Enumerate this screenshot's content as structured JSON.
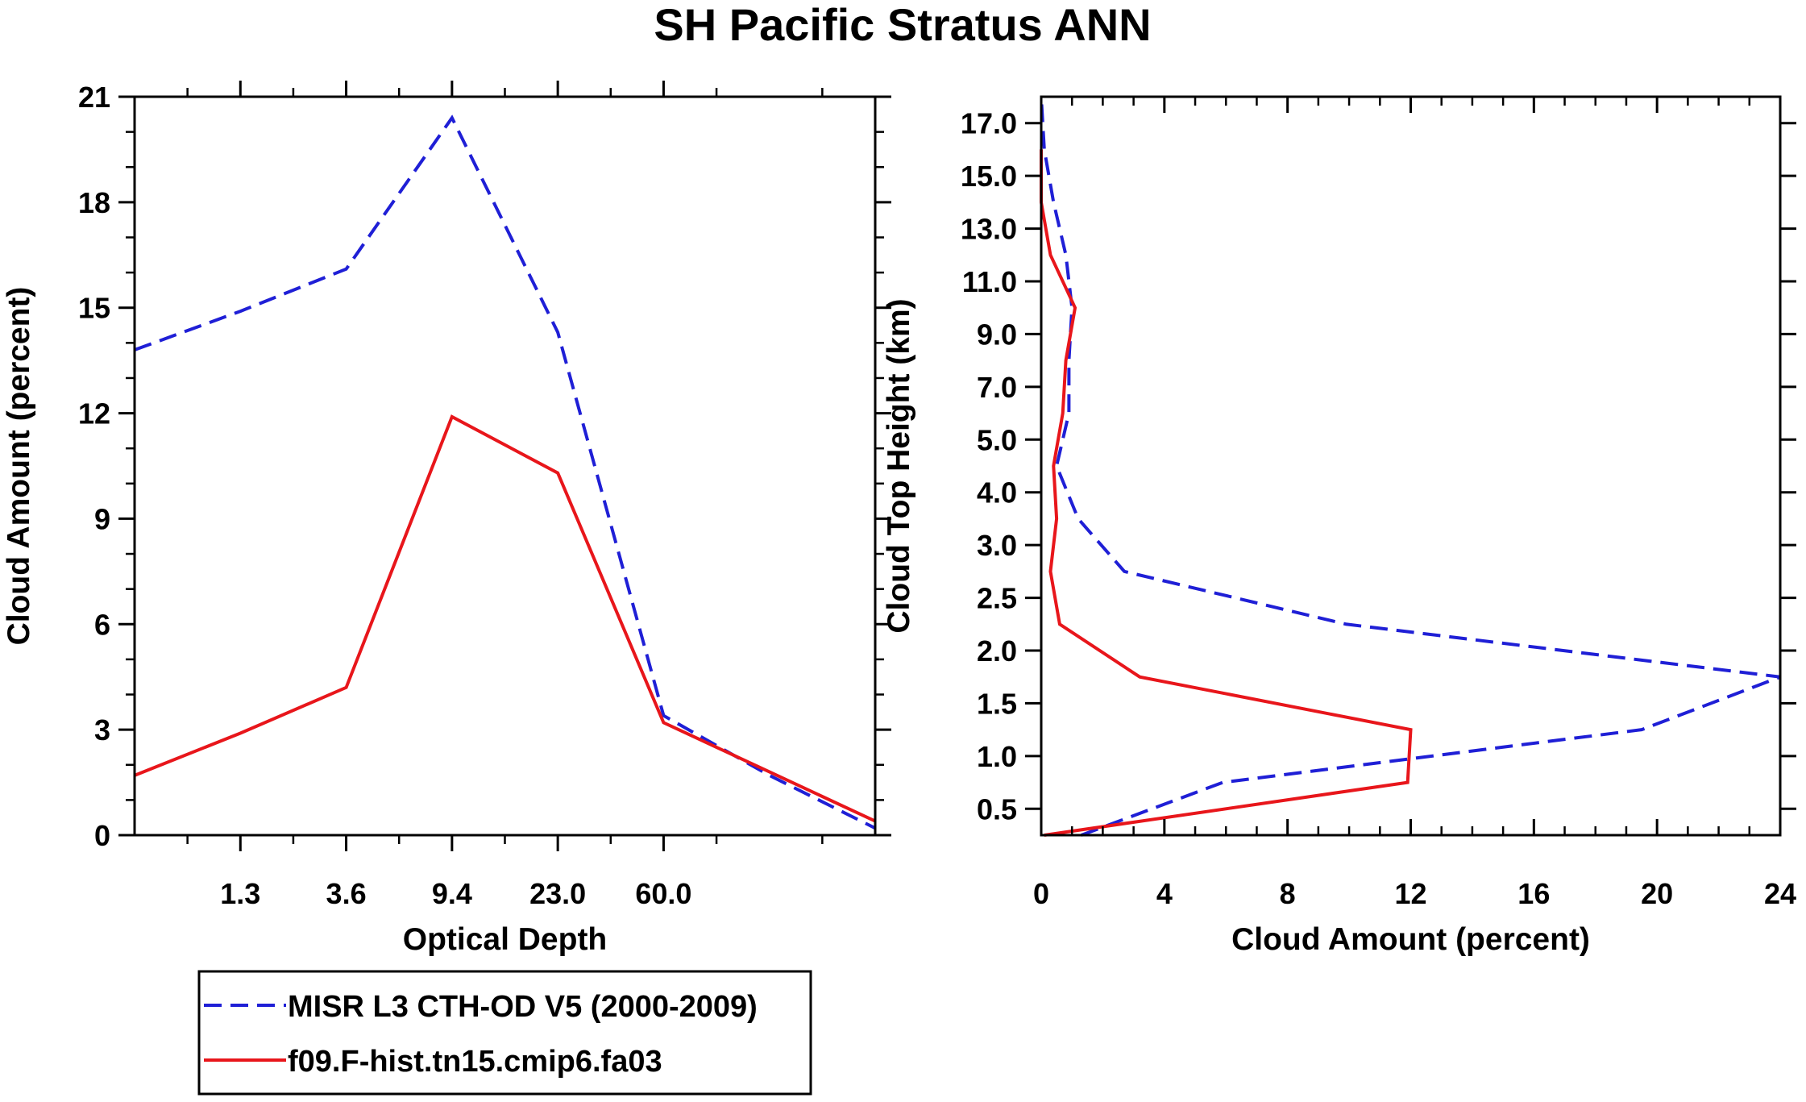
{
  "title": "SH Pacific Stratus ANN",
  "colors": {
    "obs": "#1f1fd6",
    "model": "#e8161b",
    "axis": "#000000",
    "background": "#ffffff"
  },
  "legend": {
    "entries": [
      {
        "label": "MISR L3 CTH-OD V5 (2000-2009)",
        "series": "obs",
        "style": "dashed"
      },
      {
        "label": "f09.F-hist.tn15.cmip6.fa03",
        "series": "model",
        "style": "solid"
      }
    ]
  },
  "chart_data": [
    {
      "type": "line",
      "xlabel": "Optical Depth",
      "ylabel": "Cloud Amount (percent)",
      "xlim": [
        0,
        7
      ],
      "ylim": [
        0,
        21
      ],
      "xticks": [
        {
          "pos": 1,
          "label": "1.3"
        },
        {
          "pos": 2,
          "label": "3.6"
        },
        {
          "pos": 3,
          "label": "9.4"
        },
        {
          "pos": 4,
          "label": "23.0"
        },
        {
          "pos": 5,
          "label": "60.0"
        }
      ],
      "xminor": [
        0.5,
        1.5,
        2.5,
        3.5,
        4.5,
        5.5,
        6.5
      ],
      "yticks": [
        0,
        3,
        6,
        9,
        12,
        15,
        18,
        21
      ],
      "yminor": [
        1,
        2,
        4,
        5,
        7,
        8,
        10,
        11,
        13,
        14,
        16,
        17,
        19,
        20
      ],
      "series": [
        {
          "name": "MISR L3 CTH-OD V5 (2000-2009)",
          "key": "obs",
          "style": "dashed",
          "x": [
            0,
            1,
            2,
            3,
            4,
            5,
            6,
            7
          ],
          "values": [
            13.8,
            14.9,
            16.1,
            20.4,
            14.3,
            3.4,
            1.7,
            0.2
          ]
        },
        {
          "name": "f09.F-hist.tn15.cmip6.fa03",
          "key": "model",
          "style": "solid",
          "x": [
            0,
            1,
            2,
            3,
            4,
            5,
            6,
            7
          ],
          "values": [
            1.7,
            2.9,
            4.2,
            11.9,
            10.3,
            3.2,
            1.8,
            0.4
          ]
        }
      ]
    },
    {
      "type": "line",
      "xlabel": "Cloud Amount (percent)",
      "ylabel": "Cloud Top Height (km)",
      "xlim": [
        0,
        24
      ],
      "ylim": [
        0,
        14
      ],
      "xticks": [
        0,
        4,
        8,
        12,
        16,
        20,
        24
      ],
      "xminor": [
        1,
        2,
        3,
        5,
        6,
        7,
        9,
        10,
        11,
        13,
        14,
        15,
        17,
        18,
        19,
        21,
        22,
        23
      ],
      "yticks": [
        {
          "pos": 0.5,
          "label": "0.5"
        },
        {
          "pos": 1.5,
          "label": "1.0"
        },
        {
          "pos": 2.5,
          "label": "1.5"
        },
        {
          "pos": 3.5,
          "label": "2.0"
        },
        {
          "pos": 4.5,
          "label": "2.5"
        },
        {
          "pos": 5.5,
          "label": "3.0"
        },
        {
          "pos": 6.5,
          "label": "4.0"
        },
        {
          "pos": 7.5,
          "label": "5.0"
        },
        {
          "pos": 8.5,
          "label": "7.0"
        },
        {
          "pos": 9.5,
          "label": "9.0"
        },
        {
          "pos": 10.5,
          "label": "11.0"
        },
        {
          "pos": 11.5,
          "label": "13.0"
        },
        {
          "pos": 12.5,
          "label": "15.0"
        },
        {
          "pos": 13.5,
          "label": "17.0"
        }
      ],
      "series": [
        {
          "name": "MISR L3 CTH-OD V5 (2000-2009)",
          "key": "obs",
          "style": "dashed",
          "pos": [
            0,
            1,
            2,
            3,
            4,
            5,
            6,
            7,
            8,
            9,
            10,
            11,
            12,
            13,
            14
          ],
          "values": [
            1.3,
            5.9,
            19.5,
            24.0,
            9.9,
            2.7,
            1.2,
            0.5,
            0.9,
            0.9,
            1.0,
            0.8,
            0.4,
            0.1,
            0.0
          ]
        },
        {
          "name": "f09.F-hist.tn15.cmip6.fa03",
          "key": "model",
          "style": "solid",
          "pos": [
            0,
            1,
            2,
            3,
            4,
            5,
            6,
            7,
            8,
            9,
            10,
            11,
            12,
            13
          ],
          "values": [
            0.1,
            11.9,
            12.0,
            3.2,
            0.6,
            0.3,
            0.5,
            0.4,
            0.7,
            0.8,
            1.1,
            0.3,
            0.0,
            0.0
          ]
        }
      ]
    }
  ]
}
